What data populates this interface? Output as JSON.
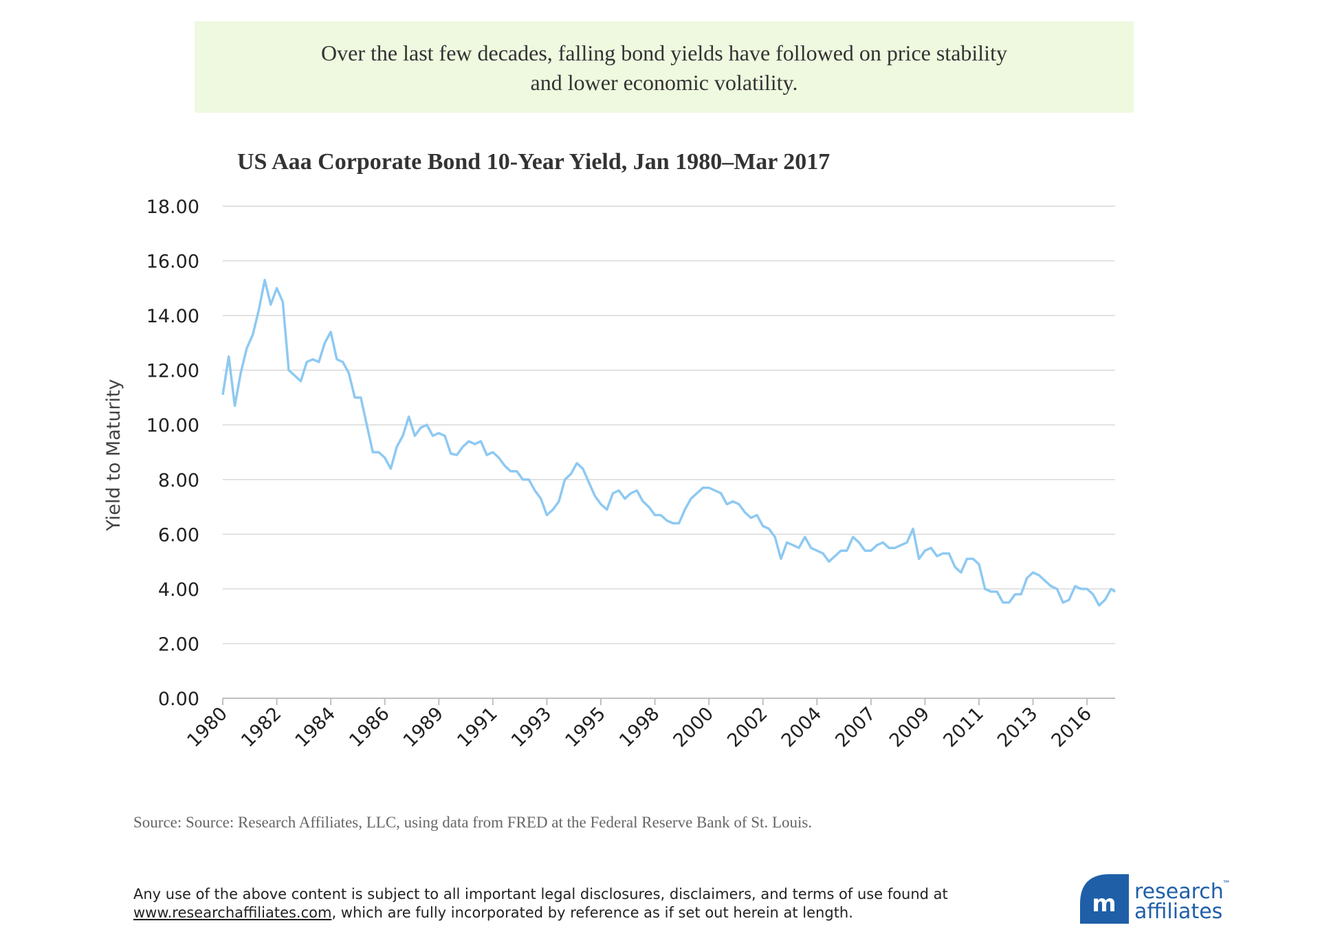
{
  "header": {
    "text": [
      "Over the last few decades, falling bond yields have followed on price stability",
      "and lower economic volatility."
    ]
  },
  "chart_data": {
    "type": "line",
    "title": "US Aaa Corporate Bond 10-Year Yield, Jan 1980–Mar 2017",
    "y_label": "Yield to Maturity",
    "color": "#8ec9f2",
    "grid": true,
    "xlim": [
      1980,
      2017.17
    ],
    "ylim": [
      0,
      18
    ],
    "yticks": [
      {
        "value": 0,
        "label": "0.00"
      },
      {
        "value": 2,
        "label": "2.00"
      },
      {
        "value": 4,
        "label": "4.00"
      },
      {
        "value": 6,
        "label": "6.00"
      },
      {
        "value": 8,
        "label": "8.00"
      },
      {
        "value": 10,
        "label": "10.00"
      },
      {
        "value": 12,
        "label": "12.00"
      },
      {
        "value": 14,
        "label": "14.00"
      },
      {
        "value": 16,
        "label": "16.00"
      },
      {
        "value": 18,
        "label": "18.00"
      }
    ],
    "xticks": [
      {
        "value": 1980,
        "label": "1980"
      },
      {
        "value": 1982.25,
        "label": "1982"
      },
      {
        "value": 1984.5,
        "label": "1984"
      },
      {
        "value": 1986.75,
        "label": "1986"
      },
      {
        "value": 1989,
        "label": "1989"
      },
      {
        "value": 1991.25,
        "label": "1991"
      },
      {
        "value": 1993.5,
        "label": "1993"
      },
      {
        "value": 1995.75,
        "label": "1995"
      },
      {
        "value": 1998,
        "label": "1998"
      },
      {
        "value": 2000.25,
        "label": "2000"
      },
      {
        "value": 2002.5,
        "label": "2002"
      },
      {
        "value": 2004.75,
        "label": "2004"
      },
      {
        "value": 2007,
        "label": "2007"
      },
      {
        "value": 2009.25,
        "label": "2009"
      },
      {
        "value": 2011.5,
        "label": "2011"
      },
      {
        "value": 2013.75,
        "label": "2013"
      },
      {
        "value": 2016,
        "label": "2016"
      }
    ],
    "x": [
      1980,
      1980.25,
      1980.5,
      1980.75,
      1981,
      1981.25,
      1981.5,
      1981.75,
      1982,
      1982.25,
      1982.5,
      1982.75,
      1983,
      1983.25,
      1983.5,
      1983.75,
      1984,
      1984.25,
      1984.5,
      1984.75,
      1985,
      1985.25,
      1985.5,
      1985.75,
      1986,
      1986.25,
      1986.5,
      1986.75,
      1987,
      1987.25,
      1987.5,
      1987.75,
      1988,
      1988.25,
      1988.5,
      1988.75,
      1989,
      1989.25,
      1989.5,
      1989.75,
      1990,
      1990.25,
      1990.5,
      1990.75,
      1991,
      1991.25,
      1991.5,
      1991.75,
      1992,
      1992.25,
      1992.5,
      1992.75,
      1993,
      1993.25,
      1993.5,
      1993.75,
      1994,
      1994.25,
      1994.5,
      1994.75,
      1995,
      1995.25,
      1995.5,
      1995.75,
      1996,
      1996.25,
      1996.5,
      1996.75,
      1997,
      1997.25,
      1997.5,
      1997.75,
      1998,
      1998.25,
      1998.5,
      1998.75,
      1999,
      1999.25,
      1999.5,
      1999.75,
      2000,
      2000.25,
      2000.5,
      2000.75,
      2001,
      2001.25,
      2001.5,
      2001.75,
      2002,
      2002.25,
      2002.5,
      2002.75,
      2003,
      2003.25,
      2003.5,
      2003.75,
      2004,
      2004.25,
      2004.5,
      2004.75,
      2005,
      2005.25,
      2005.5,
      2005.75,
      2006,
      2006.25,
      2006.5,
      2006.75,
      2007,
      2007.25,
      2007.5,
      2007.75,
      2008,
      2008.25,
      2008.5,
      2008.75,
      2009,
      2009.25,
      2009.5,
      2009.75,
      2010,
      2010.25,
      2010.5,
      2010.75,
      2011,
      2011.25,
      2011.5,
      2011.75,
      2012,
      2012.25,
      2012.5,
      2012.75,
      2013,
      2013.25,
      2013.5,
      2013.75,
      2014,
      2014.25,
      2014.5,
      2014.75,
      2015,
      2015.25,
      2015.5,
      2015.75,
      2016,
      2016.25,
      2016.5,
      2016.75,
      2017,
      2017.17
    ],
    "values": [
      11.1,
      12.5,
      10.7,
      11.9,
      12.8,
      13.3,
      14.2,
      15.3,
      14.4,
      15.0,
      14.5,
      12.0,
      11.8,
      11.6,
      12.3,
      12.4,
      12.3,
      13.0,
      13.4,
      12.4,
      12.3,
      11.9,
      11.0,
      11.0,
      10.0,
      9.0,
      9.0,
      8.8,
      8.4,
      9.2,
      9.6,
      10.3,
      9.6,
      9.9,
      10.0,
      9.6,
      9.7,
      9.6,
      8.95,
      8.9,
      9.2,
      9.4,
      9.3,
      9.4,
      8.9,
      9.0,
      8.8,
      8.5,
      8.3,
      8.3,
      8.0,
      8.0,
      7.6,
      7.3,
      6.7,
      6.9,
      7.2,
      8.0,
      8.2,
      8.6,
      8.4,
      7.9,
      7.4,
      7.1,
      6.9,
      7.5,
      7.6,
      7.3,
      7.5,
      7.6,
      7.2,
      7.0,
      6.7,
      6.7,
      6.5,
      6.4,
      6.4,
      6.9,
      7.3,
      7.5,
      7.7,
      7.7,
      7.6,
      7.5,
      7.1,
      7.2,
      7.1,
      6.8,
      6.6,
      6.7,
      6.3,
      6.2,
      5.9,
      5.1,
      5.7,
      5.6,
      5.5,
      5.9,
      5.5,
      5.4,
      5.3,
      5.0,
      5.2,
      5.4,
      5.4,
      5.9,
      5.7,
      5.4,
      5.4,
      5.6,
      5.7,
      5.5,
      5.5,
      5.6,
      5.7,
      6.2,
      5.1,
      5.4,
      5.5,
      5.2,
      5.3,
      5.3,
      4.8,
      4.6,
      5.1,
      5.1,
      4.9,
      4.0,
      3.9,
      3.9,
      3.5,
      3.5,
      3.8,
      3.8,
      4.4,
      4.6,
      4.5,
      4.3,
      4.1,
      4.0,
      3.5,
      3.6,
      4.1,
      4.0,
      4.0,
      3.8,
      3.4,
      3.6,
      4.0,
      3.9
    ]
  },
  "source": "Source:  Source: Research Affiliates, LLC, using data from FRED at the Federal Reserve Bank of St. Louis.",
  "disclaimer": {
    "line1": "Any use of the above content is subject to all important legal disclosures, disclaimers, and terms of use found at",
    "link": "www.researchaffiliates.com",
    "line2": ", which are fully incorporated by reference as if set out herein at length."
  },
  "logo": {
    "line1": "research",
    "tm": "™",
    "line2": "affiliates"
  }
}
